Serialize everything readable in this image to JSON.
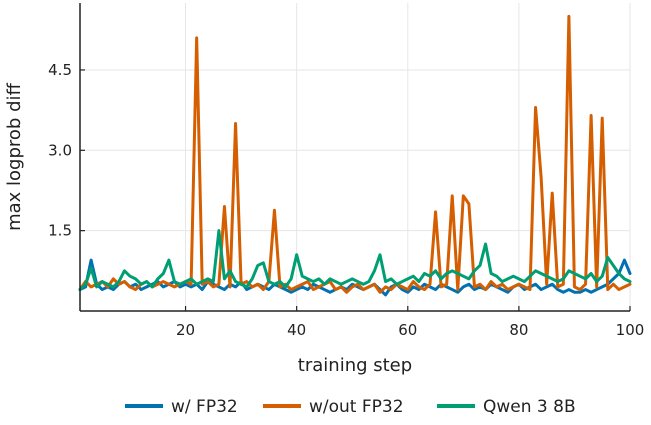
{
  "chart_data": {
    "type": "line",
    "title": "",
    "xlabel": "training step",
    "ylabel": "max logprob diff",
    "xlim": [
      1,
      100
    ],
    "ylim": [
      0.0,
      5.75
    ],
    "xticks": [
      20,
      40,
      60,
      80,
      100
    ],
    "xtick_labels": [
      "20",
      "40",
      "60",
      "80",
      "100"
    ],
    "yticks": [
      1.5,
      3.0,
      4.5
    ],
    "ytick_labels": [
      "1.5",
      "3.0",
      "4.5"
    ],
    "grid": true,
    "legend_position": "bottom",
    "series": [
      {
        "name": "w/ FP32",
        "color": "#0072B2",
        "x": [
          1,
          2,
          3,
          4,
          5,
          6,
          7,
          8,
          9,
          10,
          11,
          12,
          13,
          14,
          15,
          16,
          17,
          18,
          19,
          20,
          21,
          22,
          23,
          24,
          25,
          26,
          27,
          28,
          29,
          30,
          31,
          32,
          33,
          34,
          35,
          36,
          37,
          38,
          39,
          40,
          41,
          42,
          43,
          44,
          45,
          46,
          47,
          48,
          49,
          50,
          51,
          52,
          53,
          54,
          55,
          56,
          57,
          58,
          59,
          60,
          61,
          62,
          63,
          64,
          65,
          66,
          67,
          68,
          69,
          70,
          71,
          72,
          73,
          74,
          75,
          76,
          77,
          78,
          79,
          80,
          81,
          82,
          83,
          84,
          85,
          86,
          87,
          88,
          89,
          90,
          91,
          92,
          93,
          94,
          95,
          96,
          97,
          98,
          99,
          100
        ],
        "y": [
          0.4,
          0.45,
          0.95,
          0.5,
          0.4,
          0.45,
          0.4,
          0.5,
          0.55,
          0.45,
          0.5,
          0.4,
          0.45,
          0.5,
          0.55,
          0.45,
          0.5,
          0.55,
          0.45,
          0.5,
          0.45,
          0.5,
          0.4,
          0.55,
          0.5,
          0.45,
          0.4,
          0.5,
          0.45,
          0.55,
          0.4,
          0.45,
          0.5,
          0.45,
          0.4,
          0.5,
          0.45,
          0.4,
          0.35,
          0.4,
          0.45,
          0.4,
          0.5,
          0.45,
          0.4,
          0.35,
          0.4,
          0.45,
          0.4,
          0.5,
          0.45,
          0.4,
          0.45,
          0.5,
          0.4,
          0.3,
          0.45,
          0.5,
          0.4,
          0.35,
          0.45,
          0.4,
          0.5,
          0.45,
          0.4,
          0.5,
          0.45,
          0.4,
          0.35,
          0.45,
          0.5,
          0.4,
          0.45,
          0.4,
          0.5,
          0.45,
          0.4,
          0.35,
          0.45,
          0.5,
          0.4,
          0.45,
          0.5,
          0.4,
          0.45,
          0.5,
          0.4,
          0.35,
          0.4,
          0.35,
          0.35,
          0.4,
          0.35,
          0.4,
          0.45,
          0.5,
          0.6,
          0.7,
          0.95,
          0.7
        ]
      },
      {
        "name": "w/out FP32",
        "color": "#D55E00",
        "x": [
          1,
          2,
          3,
          4,
          5,
          6,
          7,
          8,
          9,
          10,
          11,
          12,
          13,
          14,
          15,
          16,
          17,
          18,
          19,
          20,
          21,
          22,
          23,
          24,
          25,
          26,
          27,
          28,
          29,
          30,
          31,
          32,
          33,
          34,
          35,
          36,
          37,
          38,
          39,
          40,
          41,
          42,
          43,
          44,
          45,
          46,
          47,
          48,
          49,
          50,
          51,
          52,
          53,
          54,
          55,
          56,
          57,
          58,
          59,
          60,
          61,
          62,
          63,
          64,
          65,
          66,
          67,
          68,
          69,
          70,
          71,
          72,
          73,
          74,
          75,
          76,
          77,
          78,
          79,
          80,
          81,
          82,
          83,
          84,
          85,
          86,
          87,
          88,
          89,
          90,
          91,
          92,
          93,
          94,
          95,
          96,
          97,
          98,
          99,
          100
        ],
        "y": [
          0.4,
          0.55,
          0.45,
          0.5,
          0.55,
          0.45,
          0.6,
          0.5,
          0.55,
          0.45,
          0.4,
          0.5,
          0.55,
          0.45,
          0.5,
          0.55,
          0.5,
          0.45,
          0.5,
          0.55,
          0.5,
          5.1,
          0.5,
          0.55,
          0.45,
          0.5,
          1.95,
          0.45,
          3.5,
          0.5,
          0.55,
          0.45,
          0.5,
          0.4,
          0.55,
          1.88,
          0.45,
          0.5,
          0.4,
          0.45,
          0.5,
          0.55,
          0.4,
          0.45,
          0.5,
          0.55,
          0.4,
          0.45,
          0.35,
          0.45,
          0.5,
          0.4,
          0.45,
          0.5,
          0.35,
          0.45,
          0.4,
          0.5,
          0.45,
          0.4,
          0.55,
          0.45,
          0.4,
          0.5,
          1.85,
          0.45,
          0.5,
          2.15,
          0.4,
          2.15,
          2.0,
          0.45,
          0.5,
          0.4,
          0.55,
          0.45,
          0.5,
          0.4,
          0.45,
          0.5,
          0.45,
          0.4,
          3.8,
          2.5,
          0.5,
          2.2,
          0.45,
          0.5,
          5.5,
          0.45,
          0.4,
          0.5,
          3.65,
          0.45,
          3.6,
          0.4,
          0.5,
          0.4,
          0.45,
          0.5
        ]
      },
      {
        "name": "Qwen 3 8B",
        "color": "#009E73",
        "x": [
          1,
          2,
          3,
          4,
          5,
          6,
          7,
          8,
          9,
          10,
          11,
          12,
          13,
          14,
          15,
          16,
          17,
          18,
          19,
          20,
          21,
          22,
          23,
          24,
          25,
          26,
          27,
          28,
          29,
          30,
          31,
          32,
          33,
          34,
          35,
          36,
          37,
          38,
          39,
          40,
          41,
          42,
          43,
          44,
          45,
          46,
          47,
          48,
          49,
          50,
          51,
          52,
          53,
          54,
          55,
          56,
          57,
          58,
          59,
          60,
          61,
          62,
          63,
          64,
          65,
          66,
          67,
          68,
          69,
          70,
          71,
          72,
          73,
          74,
          75,
          76,
          77,
          78,
          79,
          80,
          81,
          82,
          83,
          84,
          85,
          86,
          87,
          88,
          89,
          90,
          91,
          92,
          93,
          94,
          95,
          96,
          97,
          98,
          99,
          100
        ],
        "y": [
          0.4,
          0.5,
          0.8,
          0.45,
          0.55,
          0.5,
          0.45,
          0.55,
          0.75,
          0.65,
          0.6,
          0.5,
          0.55,
          0.45,
          0.6,
          0.7,
          0.95,
          0.55,
          0.5,
          0.55,
          0.6,
          0.5,
          0.55,
          0.6,
          0.55,
          1.5,
          0.6,
          0.75,
          0.55,
          0.5,
          0.45,
          0.6,
          0.85,
          0.9,
          0.55,
          0.5,
          0.55,
          0.45,
          0.6,
          1.05,
          0.65,
          0.6,
          0.55,
          0.6,
          0.5,
          0.6,
          0.55,
          0.5,
          0.55,
          0.6,
          0.55,
          0.5,
          0.55,
          0.75,
          1.05,
          0.55,
          0.6,
          0.5,
          0.55,
          0.6,
          0.65,
          0.55,
          0.7,
          0.65,
          0.75,
          0.6,
          0.7,
          0.75,
          0.7,
          0.65,
          0.6,
          0.75,
          0.85,
          1.25,
          0.7,
          0.65,
          0.55,
          0.6,
          0.65,
          0.6,
          0.55,
          0.65,
          0.75,
          0.7,
          0.65,
          0.6,
          0.55,
          0.6,
          0.75,
          0.7,
          0.65,
          0.6,
          0.7,
          0.55,
          0.65,
          1.0,
          0.85,
          0.7,
          0.6,
          0.55
        ]
      }
    ]
  }
}
